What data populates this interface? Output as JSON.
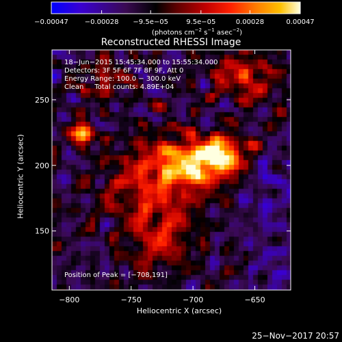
{
  "colorbar": {
    "ticks": [
      "−0.00047",
      "−0.00028",
      "−9.5e−05",
      "9.5e−05",
      "0.00028",
      "0.00047"
    ],
    "tick_values": [
      -0.00047,
      -0.00028,
      -9.5e-05,
      9.5e-05,
      0.00028,
      0.00047
    ],
    "unit_prefix": "(photons cm",
    "unit_exp1": "−2",
    "unit_mid": " s",
    "unit_exp2": "−1",
    "unit_mid2": " asec",
    "unit_exp3": "−2",
    "unit_suffix": ")",
    "colors": [
      "#0000ff",
      "#3a00d0",
      "#3a0a52",
      "#000000",
      "#5a0000",
      "#c00000",
      "#ff2000",
      "#ff7a00",
      "#ffc000",
      "#ffffe0"
    ]
  },
  "info": {
    "line1": "18−Jun−2015 15:45:34.000 to 15:55:34.000",
    "line2": "Detectors: 3F 5F 6F 7F 8F 9F, Att 0",
    "line3": "Energy Range: 100.0 − 300.0 keV",
    "line4": "Clean     Total counts: 4.89E+04"
  },
  "peak_label": "Position of Peak = [−708,191]",
  "footer_date": "25−Nov−2017 20:57",
  "chart_data": {
    "type": "heatmap",
    "title": "Reconstructed RHESSI Image",
    "xlabel": "Heliocentric X (arcsec)",
    "ylabel": "Heliocentric Y (arcsec)",
    "xlim": [
      -814,
      -621
    ],
    "ylim": [
      105,
      288
    ],
    "x_ticks": [
      -800,
      -750,
      -700,
      -650
    ],
    "x_tick_labels": [
      "−800",
      "−750",
      "−700",
      "−650"
    ],
    "y_ticks": [
      150,
      200,
      250
    ],
    "y_tick_labels": [
      "150",
      "200",
      "250"
    ],
    "peak": [
      -708,
      191
    ],
    "vmin": -0.00047,
    "vmax": 0.00047
  }
}
